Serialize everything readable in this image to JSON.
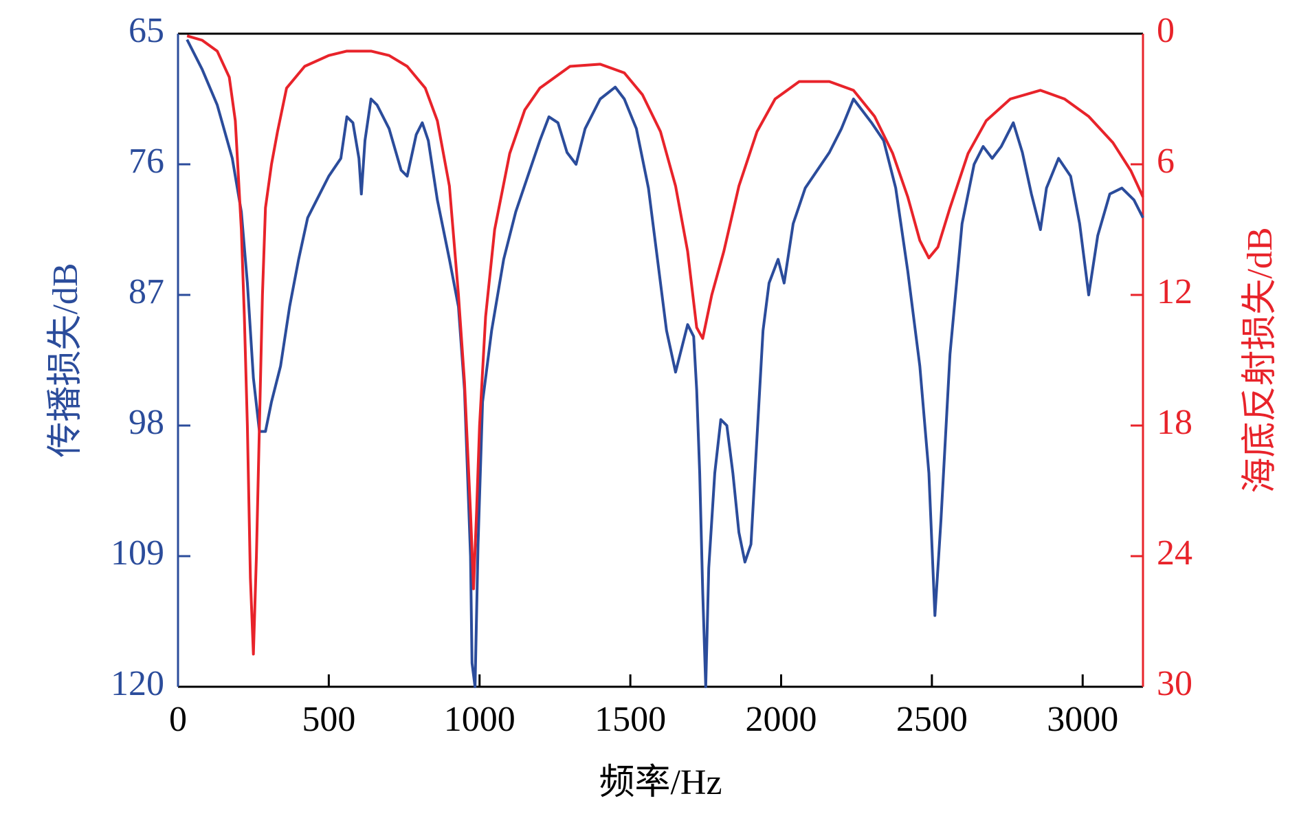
{
  "chart_data": {
    "type": "line",
    "xlabel": "频率/Hz",
    "ylabel": "传播损失/dB",
    "y2label": "海底反射损失/dB",
    "xlim": [
      0,
      3200
    ],
    "xticks": [
      0,
      500,
      1000,
      1500,
      2000,
      2500,
      3000
    ],
    "ylim": [
      120,
      65
    ],
    "yticks": [
      65,
      76,
      87,
      98,
      109,
      120
    ],
    "y2lim": [
      30,
      0
    ],
    "y2ticks": [
      0,
      6,
      12,
      18,
      24,
      30
    ],
    "axis_colors": {
      "y": "#2b4c9b",
      "y2": "#e8232a"
    },
    "series": [
      {
        "color": "#2b4c9b",
        "x": [
          30,
          80,
          130,
          180,
          210,
          230,
          250,
          270,
          290,
          310,
          340,
          370,
          400,
          430,
          460,
          500,
          540,
          560,
          580,
          600,
          608,
          620,
          640,
          660,
          700,
          740,
          760,
          790,
          810,
          830,
          860,
          900,
          930,
          950,
          960,
          970,
          975,
          985,
          995,
          1010,
          1040,
          1080,
          1120,
          1160,
          1200,
          1230,
          1260,
          1290,
          1320,
          1350,
          1400,
          1450,
          1480,
          1520,
          1560,
          1590,
          1620,
          1650,
          1670,
          1690,
          1710,
          1720,
          1730,
          1740,
          1750,
          1760,
          1780,
          1800,
          1820,
          1840,
          1860,
          1880,
          1900,
          1920,
          1940,
          1960,
          1990,
          2010,
          2040,
          2080,
          2120,
          2160,
          2200,
          2240,
          2270,
          2300,
          2340,
          2380,
          2420,
          2460,
          2490,
          2510,
          2530,
          2560,
          2600,
          2640,
          2670,
          2700,
          2730,
          2770,
          2800,
          2830,
          2860,
          2880,
          2920,
          2960,
          2990,
          3020,
          3050,
          3090,
          3130,
          3170,
          3200
        ],
        "values": [
          65.5,
          68,
          71,
          75.5,
          80,
          86,
          94,
          98.5,
          98.5,
          96,
          93,
          88,
          84,
          80.5,
          79,
          77,
          75.5,
          72,
          72.5,
          75.5,
          78.5,
          74,
          70.5,
          71,
          73,
          76.5,
          77,
          73.5,
          72.5,
          74,
          79,
          84,
          88,
          95,
          102,
          109,
          118,
          120,
          108,
          96,
          90,
          84,
          80,
          77,
          74,
          72,
          72.5,
          75,
          76,
          73,
          70.5,
          69.5,
          70.5,
          73,
          78,
          84,
          90,
          93.5,
          91.5,
          89.5,
          90.5,
          95,
          102,
          112,
          120,
          110,
          102,
          97.5,
          98,
          102,
          107,
          109.5,
          108,
          99,
          90,
          86,
          84,
          86,
          81,
          78,
          76.5,
          75,
          73,
          70.5,
          71.5,
          72.5,
          74,
          78,
          85,
          93,
          102,
          114,
          106,
          92,
          81,
          76,
          74.5,
          75.5,
          74.5,
          72.5,
          75,
          78.5,
          81.5,
          78,
          75.5,
          77,
          81,
          87,
          82,
          78.5,
          78,
          79,
          80.5
        ]
      },
      {
        "color": "#e8232a",
        "axis": "y2",
        "x": [
          30,
          80,
          130,
          170,
          190,
          210,
          220,
          230,
          240,
          250,
          260,
          270,
          280,
          290,
          310,
          330,
          360,
          420,
          500,
          560,
          640,
          700,
          760,
          820,
          860,
          900,
          930,
          950,
          970,
          980,
          990,
          1000,
          1020,
          1050,
          1100,
          1150,
          1200,
          1300,
          1400,
          1480,
          1540,
          1600,
          1650,
          1690,
          1720,
          1740,
          1770,
          1810,
          1860,
          1920,
          1980,
          2060,
          2160,
          2240,
          2310,
          2370,
          2420,
          2460,
          2490,
          2520,
          2560,
          2620,
          2680,
          2760,
          2860,
          2940,
          3020,
          3100,
          3160,
          3200
        ],
        "values": [
          0.1,
          0.3,
          0.8,
          2,
          4,
          9,
          13,
          18,
          25,
          28.5,
          24,
          18,
          12,
          8,
          6,
          4.5,
          2.5,
          1.5,
          1,
          0.8,
          0.8,
          1,
          1.5,
          2.5,
          4,
          7,
          12,
          16,
          22,
          25.5,
          22,
          18,
          13,
          9,
          5.5,
          3.5,
          2.5,
          1.5,
          1.4,
          1.8,
          2.8,
          4.5,
          7,
          10,
          13.5,
          14,
          12,
          10,
          7,
          4.5,
          3,
          2.2,
          2.2,
          2.6,
          3.8,
          5.5,
          7.5,
          9.5,
          10.3,
          9.8,
          8,
          5.5,
          4,
          3,
          2.6,
          3,
          3.8,
          5,
          6.3,
          7.5
        ]
      }
    ]
  }
}
